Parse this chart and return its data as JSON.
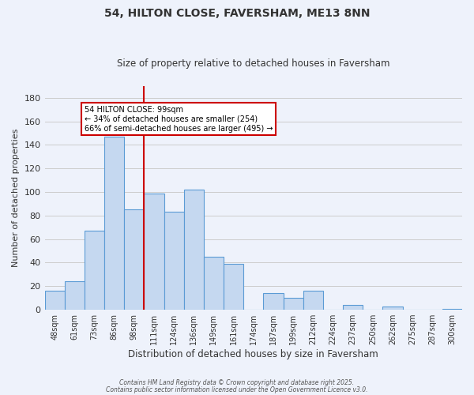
{
  "title": "54, HILTON CLOSE, FAVERSHAM, ME13 8NN",
  "subtitle": "Size of property relative to detached houses in Faversham",
  "xlabel": "Distribution of detached houses by size in Faversham",
  "ylabel": "Number of detached properties",
  "categories": [
    "48sqm",
    "61sqm",
    "73sqm",
    "86sqm",
    "98sqm",
    "111sqm",
    "124sqm",
    "136sqm",
    "149sqm",
    "161sqm",
    "174sqm",
    "187sqm",
    "199sqm",
    "212sqm",
    "224sqm",
    "237sqm",
    "250sqm",
    "262sqm",
    "275sqm",
    "287sqm",
    "300sqm"
  ],
  "values": [
    16,
    24,
    67,
    147,
    85,
    99,
    83,
    102,
    45,
    39,
    0,
    14,
    10,
    16,
    0,
    4,
    0,
    3,
    0,
    0,
    1
  ],
  "bar_color": "#c5d8f0",
  "bar_edge_color": "#5b9bd5",
  "highlight_bar_index": 4,
  "highlight_line_color": "#cc0000",
  "annotation_text_line1": "54 HILTON CLOSE: 99sqm",
  "annotation_text_line2": "← 34% of detached houses are smaller (254)",
  "annotation_text_line3": "66% of semi-detached houses are larger (495) →",
  "annotation_box_edge_color": "#cc0000",
  "ylim": [
    0,
    190
  ],
  "yticks": [
    0,
    20,
    40,
    60,
    80,
    100,
    120,
    140,
    160,
    180
  ],
  "grid_color": "#cccccc",
  "background_color": "#eef2fb",
  "footer_line1": "Contains HM Land Registry data © Crown copyright and database right 2025.",
  "footer_line2": "Contains public sector information licensed under the Open Government Licence v3.0."
}
